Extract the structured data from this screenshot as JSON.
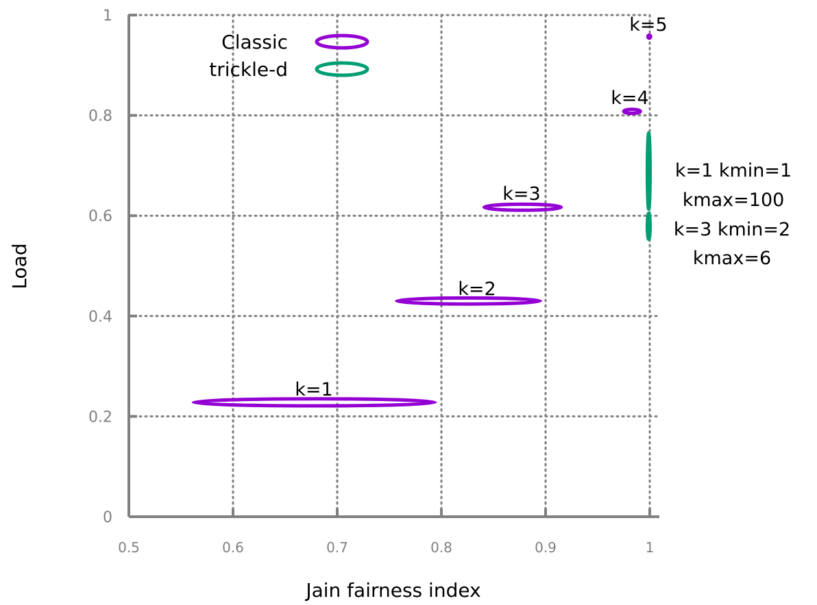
{
  "chart_data": {
    "type": "scatter",
    "xlabel": "Jain fairness index",
    "ylabel": "Load",
    "xlim": [
      0.5,
      1
    ],
    "ylim": [
      0,
      1
    ],
    "x_ticks": [
      "0.5",
      "0.6",
      "0.7",
      "0.8",
      "0.9",
      "1"
    ],
    "y_ticks": [
      "0",
      "0.2",
      "0.4",
      "0.6",
      "0.8",
      "1"
    ],
    "grid": true,
    "legend_position": "top-left",
    "series": [
      {
        "name": "Classic",
        "color": "#9400d3",
        "marker": "ellipse",
        "points": [
          {
            "label": "k=1",
            "x": 0.678,
            "y": 0.228,
            "x_spread": 0.116,
            "y_spread": 0.007
          },
          {
            "label": "k=2",
            "x": 0.826,
            "y": 0.43,
            "x_spread": 0.069,
            "y_spread": 0.006
          },
          {
            "label": "k=3",
            "x": 0.878,
            "y": 0.617,
            "x_spread": 0.037,
            "y_spread": 0.006
          },
          {
            "label": "k=4",
            "x": 0.983,
            "y": 0.808,
            "x_spread": 0.008,
            "y_spread": 0.004
          },
          {
            "label": "k=5",
            "x": 0.9995,
            "y": 0.957,
            "x_spread": 0.0005,
            "y_spread": 0.003
          }
        ]
      },
      {
        "name": "trickle-d",
        "color": "#009e73",
        "marker": "ellipse",
        "points": [
          {
            "label": "k=1 kmin=1 kmax=100",
            "x": 0.999,
            "y": 0.689,
            "x_spread": 0.0012,
            "y_spread": 0.076
          },
          {
            "label": "k=3 kmin=2 kmax=6",
            "x": 0.999,
            "y": 0.579,
            "x_spread": 0.0012,
            "y_spread": 0.026
          }
        ]
      }
    ]
  }
}
